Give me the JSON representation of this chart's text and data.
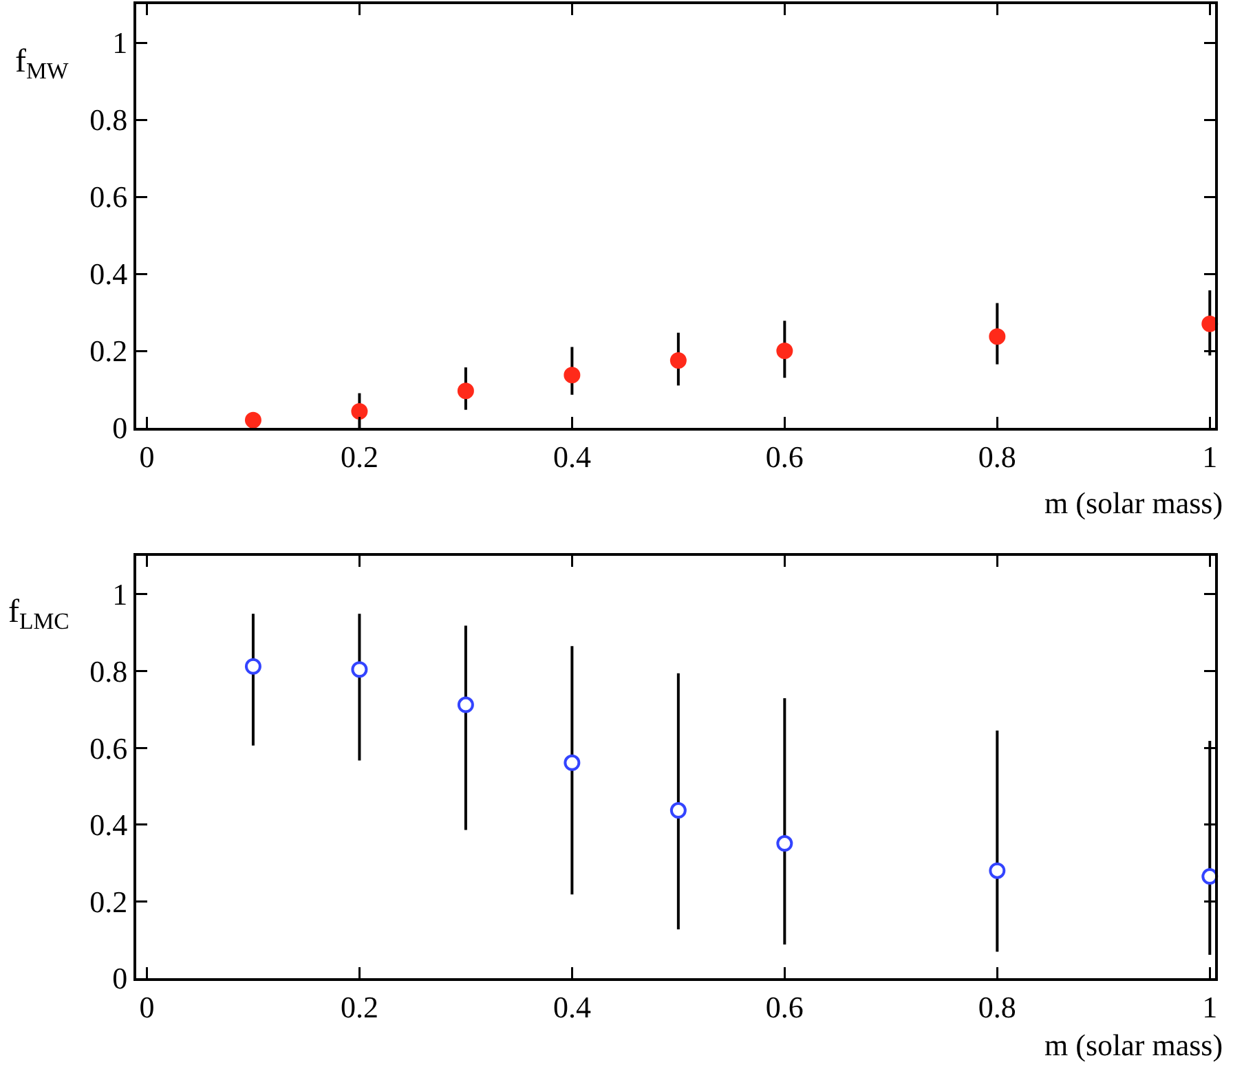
{
  "chart_data": [
    {
      "type": "scatter",
      "ylabel": "f$_{MW}$",
      "xlabel": "m (solar mass)",
      "x": [
        0.1,
        0.2,
        0.3,
        0.4,
        0.5,
        0.6,
        0.8,
        1.0
      ],
      "xlim": [
        -0.01,
        1.005
      ],
      "xticks": [
        0,
        0.2,
        0.4,
        0.6,
        0.8,
        1
      ],
      "ylim": [
        0,
        1.1
      ],
      "yticks": [
        0,
        0.2,
        0.4,
        0.6,
        0.8,
        1
      ],
      "grid": false,
      "marker": "circle",
      "series": [
        {
          "color": "#ff2a1a",
          "values": [
            0.02,
            0.043,
            0.096,
            0.137,
            0.175,
            0.2,
            0.237,
            0.27
          ],
          "errors": [
            [
              0,
              0.04
            ],
            [
              0,
              0.09
            ],
            [
              0.047,
              0.157
            ],
            [
              0.086,
              0.21
            ],
            [
              0.11,
              0.247
            ],
            [
              0.13,
              0.278
            ],
            [
              0.165,
              0.324
            ],
            [
              0.188,
              0.357
            ]
          ]
        }
      ]
    },
    {
      "type": "scatter",
      "ylabel": "f$_{LMC}$",
      "xlabel": "m (solar mass)",
      "x": [
        0.1,
        0.2,
        0.3,
        0.4,
        0.5,
        0.6,
        0.8,
        1.0
      ],
      "xlim": [
        -0.01,
        1.005
      ],
      "xticks": [
        0,
        0.2,
        0.4,
        0.6,
        0.8,
        1
      ],
      "ylim": [
        0,
        1.1
      ],
      "yticks": [
        0,
        0.2,
        0.4,
        0.6,
        0.8,
        1
      ],
      "grid": false,
      "marker": "circle",
      "series": [
        {
          "color": "#3344ff",
          "values": [
            0.812,
            0.804,
            0.712,
            0.561,
            0.437,
            0.351,
            0.28,
            0.265
          ],
          "errors": [
            [
              0.606,
              0.949
            ],
            [
              0.567,
              0.949
            ],
            [
              0.386,
              0.918
            ],
            [
              0.218,
              0.865
            ],
            [
              0.127,
              0.794
            ],
            [
              0.088,
              0.729
            ],
            [
              0.069,
              0.645
            ],
            [
              0.061,
              0.618
            ]
          ]
        }
      ]
    }
  ]
}
